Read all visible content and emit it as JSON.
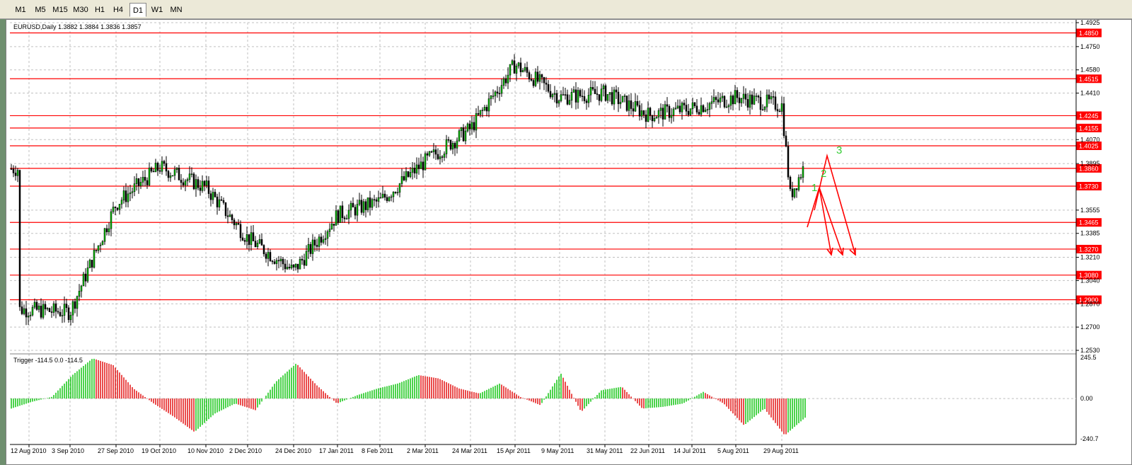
{
  "timeframes": [
    "M1",
    "M5",
    "M15",
    "M30",
    "H1",
    "H4",
    "D1",
    "W1",
    "MN"
  ],
  "active_timeframe": "D1",
  "main_header": "EURUSD,Daily  1.3882 1.3884 1.3836 1.3857",
  "price_axis_labels": [
    "1.4925",
    "1.4750",
    "1.4580",
    "1.4410",
    "1.4070",
    "1.3895",
    "1.3555",
    "1.3385",
    "1.3210",
    "1.3040",
    "1.2870",
    "1.2700",
    "1.2530"
  ],
  "levels": [
    "1.4850",
    "1.4515",
    "1.4245",
    "1.4155",
    "1.4025",
    "1.3860",
    "1.3730",
    "1.3465",
    "1.3270",
    "1.3080",
    "1.2900"
  ],
  "date_labels": [
    "12 Aug 2010",
    "3 Sep 2010",
    "27 Sep 2010",
    "19 Oct 2010",
    "10 Nov 2010",
    "2 Dec 2010",
    "24 Dec 2010",
    "17 Jan 2011",
    "8 Feb 2011",
    "2 Mar 2011",
    "24 Mar 2011",
    "15 Apr 2011",
    "9 May 2011",
    "31 May 2011",
    "22 Jun 2011",
    "14 Jul 2011",
    "5 Aug 2011",
    "29 Aug 2011"
  ],
  "wave_labels": [
    "1",
    "2",
    "3"
  ],
  "indicator_header": "Trigger -114.5 0.0 -114.5",
  "indicator_axis_labels": [
    "245.5",
    "0.00",
    "-240.7"
  ],
  "colors": {
    "up": "#00c000",
    "down": "#e00000",
    "level": "#ff0000",
    "grid": "#c0c0c0",
    "wave": "#33cc33"
  },
  "chart_data": {
    "type": "candlestick",
    "symbol": "EURUSD",
    "timeframe": "Daily",
    "ohlc_last": {
      "open": 1.3882,
      "high": 1.3884,
      "low": 1.3836,
      "close": 1.3857
    },
    "ylim": [
      1.253,
      1.4925
    ],
    "close_path": [
      [
        "12 Aug 2010",
        1.283
      ],
      [
        "3 Sep 2010",
        1.281
      ],
      [
        "27 Sep 2010",
        1.36
      ],
      [
        "19 Oct 2010",
        1.387
      ],
      [
        "10 Nov 2010",
        1.372
      ],
      [
        "2 Dec 2010",
        1.335
      ],
      [
        "24 Dec 2010",
        1.311
      ],
      [
        "17 Jan 2011",
        1.352
      ],
      [
        "8 Feb 2011",
        1.362
      ],
      [
        "2 Mar 2011",
        1.391
      ],
      [
        "24 Mar 2011",
        1.415
      ],
      [
        "15 Apr 2011",
        1.462
      ],
      [
        "9 May 2011",
        1.438
      ],
      [
        "31 May 2011",
        1.441
      ],
      [
        "22 Jun 2011",
        1.425
      ],
      [
        "14 Jul 2011",
        1.43
      ],
      [
        "5 Aug 2011",
        1.438
      ],
      [
        "29 Aug 2011",
        1.432
      ],
      [
        "12 Sep 2011",
        1.366
      ],
      [
        "15 Sep 2011",
        1.3857
      ]
    ],
    "indicator": {
      "name": "Trigger",
      "ylim": [
        -240.7,
        245.5
      ],
      "values": [
        -60,
        -20,
        10,
        140,
        240,
        200,
        60,
        -30,
        -110,
        -200,
        -90,
        -30,
        -70,
        100,
        210,
        80,
        -30,
        20,
        60,
        90,
        140,
        120,
        60,
        30,
        90,
        10,
        -40,
        150,
        -80,
        50,
        70,
        -60,
        -50,
        -30,
        40,
        -30,
        -160,
        -60,
        -220,
        -114.5
      ]
    }
  }
}
